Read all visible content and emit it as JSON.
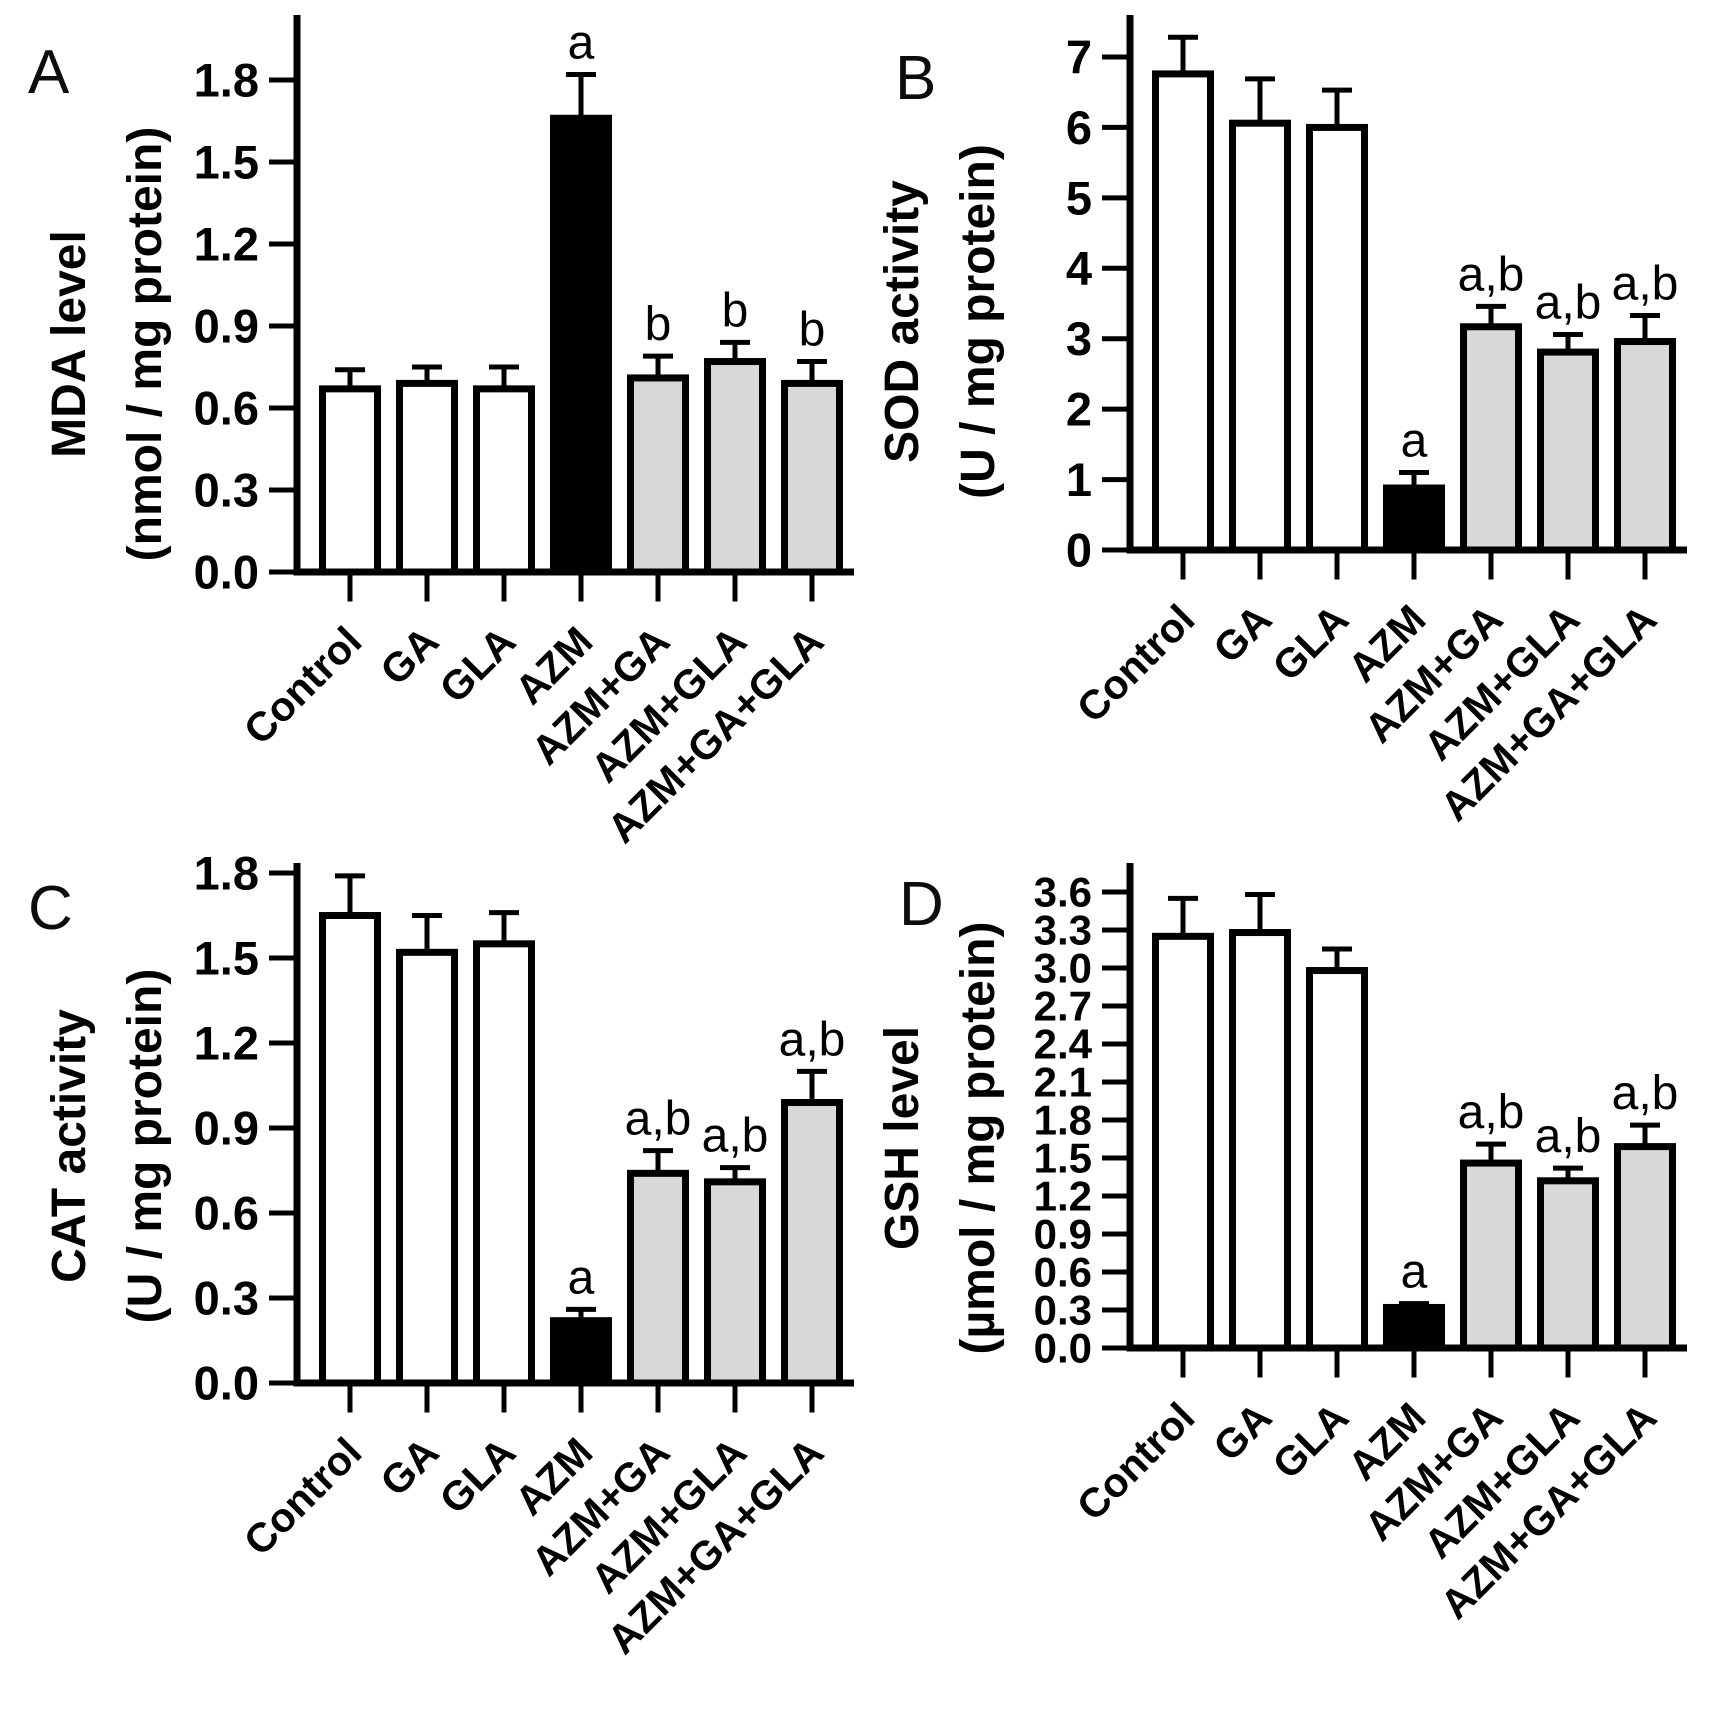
{
  "colors": {
    "ink": "#000000",
    "bar_white": "#ffffff",
    "bar_black": "#000000",
    "bar_gray": "#d8d8d8"
  },
  "categories": [
    "Control",
    "GA",
    "GLA",
    "AZM",
    "AZM+GA",
    "AZM+GLA",
    "AZM+GA+GLA"
  ],
  "chart_data": [
    {
      "panel": "A",
      "type": "bar",
      "title": "",
      "ylabel": "MDA level",
      "ylabel_units": "(nmol / mg protein)",
      "xlabel": "",
      "grid": false,
      "legend": null,
      "categories": [
        "Control",
        "GA",
        "GLA",
        "AZM",
        "AZM+GA",
        "AZM+GLA",
        "AZM+GA+GLA"
      ],
      "values": [
        0.67,
        0.69,
        0.67,
        1.66,
        0.71,
        0.77,
        0.69
      ],
      "errors": [
        0.07,
        0.06,
        0.08,
        0.16,
        0.08,
        0.07,
        0.08
      ],
      "annotations": [
        "",
        "",
        "",
        "a",
        "b",
        "b",
        "b"
      ],
      "bar_fills": [
        "bar_white",
        "bar_white",
        "bar_white",
        "bar_black",
        "bar_gray",
        "bar_gray",
        "bar_gray"
      ],
      "ylim": [
        0,
        2.0
      ],
      "yticks": [
        0,
        0.3,
        0.6,
        0.9,
        1.2,
        1.5,
        1.8
      ],
      "ytick_labels": [
        "0.0",
        "0.3",
        "0.6",
        "0.9",
        "1.2",
        "1.5",
        "1.8"
      ]
    },
    {
      "panel": "B",
      "type": "bar",
      "title": "",
      "ylabel": "SOD activity",
      "ylabel_units": "(U / mg protein)",
      "xlabel": "",
      "grid": false,
      "legend": null,
      "categories": [
        "Control",
        "GA",
        "GLA",
        "AZM",
        "AZM+GA",
        "AZM+GLA",
        "AZM+GA+GLA"
      ],
      "values": [
        6.76,
        6.06,
        6.0,
        0.88,
        3.17,
        2.81,
        2.96
      ],
      "errors": [
        0.52,
        0.63,
        0.53,
        0.22,
        0.29,
        0.25,
        0.37
      ],
      "annotations": [
        "",
        "",
        "",
        "a",
        "a,b",
        "a,b",
        "a,b"
      ],
      "bar_fills": [
        "bar_white",
        "bar_white",
        "bar_white",
        "bar_black",
        "bar_gray",
        "bar_gray",
        "bar_gray"
      ],
      "ylim": [
        0,
        7.6
      ],
      "yticks": [
        0,
        1,
        2,
        3,
        4,
        5,
        6,
        7
      ],
      "ytick_labels": [
        "0",
        "1",
        "2",
        "3",
        "4",
        "5",
        "6",
        "7"
      ]
    },
    {
      "panel": "C",
      "type": "bar",
      "title": "",
      "ylabel": "CAT activity",
      "ylabel_units": "(U / mg protein)",
      "xlabel": "",
      "grid": false,
      "legend": null,
      "categories": [
        "Control",
        "GA",
        "GLA",
        "AZM",
        "AZM+GA",
        "AZM+GLA",
        "AZM+GA+GLA"
      ],
      "values": [
        1.65,
        1.52,
        1.55,
        0.22,
        0.74,
        0.71,
        0.99
      ],
      "errors": [
        0.14,
        0.13,
        0.11,
        0.04,
        0.08,
        0.05,
        0.11
      ],
      "annotations": [
        "",
        "",
        "",
        "a",
        "a,b",
        "a,b",
        "a,b"
      ],
      "bar_fills": [
        "bar_white",
        "bar_white",
        "bar_white",
        "bar_black",
        "bar_gray",
        "bar_gray",
        "bar_gray"
      ],
      "ylim": [
        0,
        1.85
      ],
      "yticks": [
        0,
        0.3,
        0.6,
        0.9,
        1.2,
        1.5,
        1.8
      ],
      "ytick_labels": [
        "0.0",
        "0.3",
        "0.6",
        "0.9",
        "1.2",
        "1.5",
        "1.8"
      ]
    },
    {
      "panel": "D",
      "type": "bar",
      "title": "",
      "ylabel": "GSH level",
      "ylabel_units": "(µmol / mg protein)",
      "xlabel": "",
      "grid": false,
      "legend": null,
      "categories": [
        "Control",
        "GA",
        "GLA",
        "AZM",
        "AZM+GA",
        "AZM+GLA",
        "AZM+GA+GLA"
      ],
      "values": [
        3.25,
        3.28,
        2.98,
        0.32,
        1.46,
        1.32,
        1.59
      ],
      "errors": [
        0.3,
        0.3,
        0.17,
        0.03,
        0.15,
        0.1,
        0.17
      ],
      "annotations": [
        "",
        "",
        "",
        "a",
        "a,b",
        "a,b",
        "a,b"
      ],
      "bar_fills": [
        "bar_white",
        "bar_white",
        "bar_white",
        "bar_black",
        "bar_gray",
        "bar_gray",
        "bar_gray"
      ],
      "ylim": [
        0,
        3.83
      ],
      "yticks": [
        0,
        0.3,
        0.6,
        0.9,
        1.2,
        1.5,
        1.8,
        2.1,
        2.4,
        2.7,
        3.0,
        3.3,
        3.6
      ],
      "ytick_labels": [
        "0.0",
        "0.3",
        "0.6",
        "0.9",
        "1.2",
        "1.5",
        "1.8",
        "2.1",
        "2.4",
        "2.7",
        "3.0",
        "3.3",
        "3.6"
      ]
    }
  ]
}
